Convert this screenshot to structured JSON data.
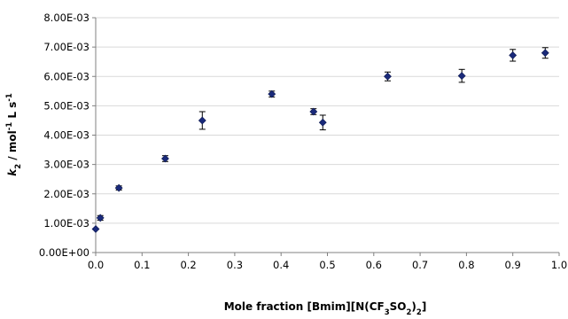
{
  "chart_data": {
    "type": "scatter",
    "xlabel": {
      "base": "Mole fraction [Bmim][N(CF",
      "sub1": "3",
      "mid": "SO",
      "sub2": "2",
      "close": ")",
      "sub3": "2",
      "end": "]"
    },
    "ylabel": {
      "var": "k",
      "var_sub": "2",
      "rest1": " / mol",
      "sup1": "-1",
      "rest2": " L s",
      "sup2": "-1"
    },
    "xlim": [
      0,
      1
    ],
    "ylim": [
      0,
      0.008
    ],
    "x_ticks": [
      0.0,
      0.1,
      0.2,
      0.3,
      0.4,
      0.5,
      0.6,
      0.7,
      0.8,
      0.9,
      1.0
    ],
    "x_tick_labels": [
      "0.0",
      "0.1",
      "0.2",
      "0.3",
      "0.4",
      "0.5",
      "0.6",
      "0.7",
      "0.8",
      "0.9",
      "1.0"
    ],
    "y_ticks": [
      0,
      0.001,
      0.002,
      0.003,
      0.004,
      0.005,
      0.006,
      0.007,
      0.008
    ],
    "y_tick_labels": [
      "0.00E+00",
      "1.00E-03",
      "2.00E-03",
      "3.00E-03",
      "4.00E-03",
      "5.00E-03",
      "6.00E-03",
      "7.00E-03",
      "8.00E-03"
    ],
    "grid": "horizontal",
    "legend": "none",
    "marker": "diamond",
    "marker_color": "#1a2a7a",
    "points": [
      {
        "x": 0.0,
        "y": 0.0008,
        "err": 0.0
      },
      {
        "x": 0.01,
        "y": 0.00118,
        "err": 8e-05
      },
      {
        "x": 0.05,
        "y": 0.0022,
        "err": 7e-05
      },
      {
        "x": 0.15,
        "y": 0.0032,
        "err": 0.0001
      },
      {
        "x": 0.23,
        "y": 0.0045,
        "err": 0.0003
      },
      {
        "x": 0.38,
        "y": 0.0054,
        "err": 0.0001
      },
      {
        "x": 0.47,
        "y": 0.0048,
        "err": 0.0001
      },
      {
        "x": 0.49,
        "y": 0.00443,
        "err": 0.00025
      },
      {
        "x": 0.63,
        "y": 0.006,
        "err": 0.00015
      },
      {
        "x": 0.79,
        "y": 0.00602,
        "err": 0.00022
      },
      {
        "x": 0.9,
        "y": 0.00672,
        "err": 0.0002
      },
      {
        "x": 0.97,
        "y": 0.0068,
        "err": 0.00018
      }
    ]
  }
}
